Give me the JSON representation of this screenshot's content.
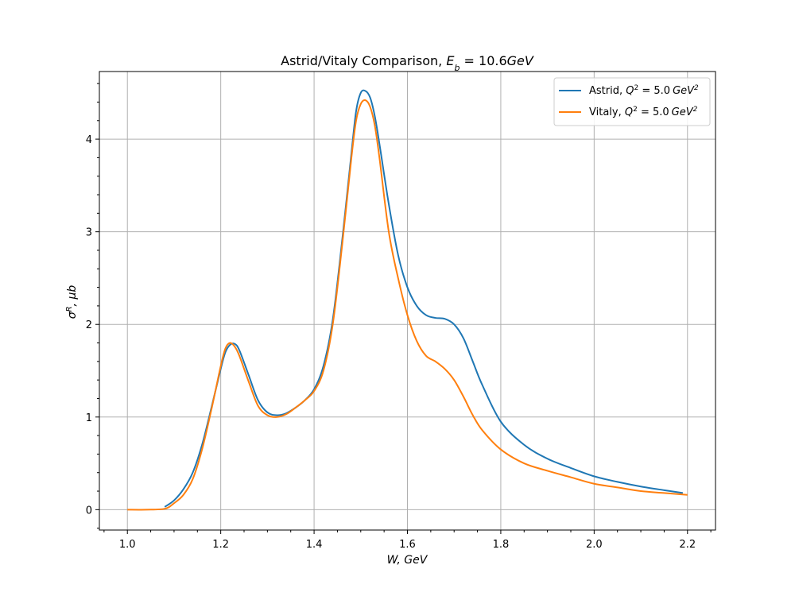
{
  "chart_data": {
    "type": "line",
    "title_prefix": "Astrid/Vitaly Comparison, ",
    "title_math_base": "E",
    "title_math_sub": "b",
    "title_math_rest": " = 10.6",
    "title_math_unit": "GeV",
    "xlabel": "W, GeV",
    "ylabel_base": "σ",
    "ylabel_sup": "R",
    "ylabel_rest": ", μb",
    "xlim": [
      0.94,
      2.26
    ],
    "ylim": [
      -0.22,
      4.73
    ],
    "xticks": [
      "1.0",
      "1.2",
      "1.4",
      "1.6",
      "1.8",
      "2.0",
      "2.2"
    ],
    "yticks": [
      "0",
      "1",
      "2",
      "3",
      "4"
    ],
    "grid": true,
    "legend_position": "top-right",
    "series": [
      {
        "name_prefix": "Astrid, ",
        "name_math": "Q",
        "name_sup": "2",
        "name_rest": " = 5.0",
        "name_unit": "GeV",
        "name_unit_sup": "2",
        "color": "#1f77b4",
        "x": [
          1.08,
          1.1,
          1.12,
          1.14,
          1.16,
          1.18,
          1.2,
          1.21,
          1.22,
          1.23,
          1.24,
          1.26,
          1.28,
          1.3,
          1.32,
          1.34,
          1.36,
          1.38,
          1.4,
          1.42,
          1.44,
          1.46,
          1.48,
          1.49,
          1.5,
          1.51,
          1.52,
          1.53,
          1.54,
          1.56,
          1.58,
          1.6,
          1.62,
          1.64,
          1.66,
          1.68,
          1.7,
          1.72,
          1.74,
          1.76,
          1.8,
          1.85,
          1.9,
          1.95,
          2.0,
          2.05,
          2.1,
          2.15,
          2.19
        ],
        "y": [
          0.03,
          0.1,
          0.22,
          0.4,
          0.7,
          1.1,
          1.52,
          1.7,
          1.78,
          1.79,
          1.72,
          1.45,
          1.18,
          1.05,
          1.02,
          1.04,
          1.1,
          1.18,
          1.3,
          1.55,
          2.05,
          2.9,
          3.85,
          4.3,
          4.5,
          4.52,
          4.45,
          4.25,
          3.95,
          3.3,
          2.75,
          2.4,
          2.2,
          2.1,
          2.07,
          2.06,
          2.0,
          1.85,
          1.6,
          1.35,
          0.95,
          0.7,
          0.55,
          0.45,
          0.36,
          0.3,
          0.25,
          0.21,
          0.18
        ]
      },
      {
        "name_prefix": "Vitaly, ",
        "name_math": "Q",
        "name_sup": "2",
        "name_rest": " = 5.0",
        "name_unit": "GeV",
        "name_unit_sup": "2",
        "color": "#ff7f0e",
        "x": [
          1.0,
          1.04,
          1.08,
          1.1,
          1.12,
          1.14,
          1.16,
          1.18,
          1.2,
          1.21,
          1.22,
          1.23,
          1.24,
          1.26,
          1.28,
          1.3,
          1.32,
          1.34,
          1.36,
          1.38,
          1.4,
          1.42,
          1.44,
          1.46,
          1.48,
          1.49,
          1.5,
          1.51,
          1.52,
          1.53,
          1.54,
          1.56,
          1.58,
          1.6,
          1.62,
          1.64,
          1.66,
          1.68,
          1.7,
          1.72,
          1.74,
          1.76,
          1.8,
          1.85,
          1.9,
          1.95,
          2.0,
          2.05,
          2.1,
          2.15,
          2.2
        ],
        "y": [
          0.0,
          0.0,
          0.01,
          0.07,
          0.16,
          0.33,
          0.65,
          1.08,
          1.55,
          1.74,
          1.8,
          1.76,
          1.66,
          1.38,
          1.12,
          1.02,
          1.0,
          1.03,
          1.1,
          1.18,
          1.28,
          1.5,
          2.0,
          2.85,
          3.8,
          4.2,
          4.38,
          4.42,
          4.35,
          4.15,
          3.8,
          3.0,
          2.5,
          2.1,
          1.82,
          1.66,
          1.6,
          1.52,
          1.4,
          1.22,
          1.02,
          0.86,
          0.65,
          0.5,
          0.42,
          0.35,
          0.28,
          0.24,
          0.2,
          0.18,
          0.16
        ]
      }
    ]
  }
}
